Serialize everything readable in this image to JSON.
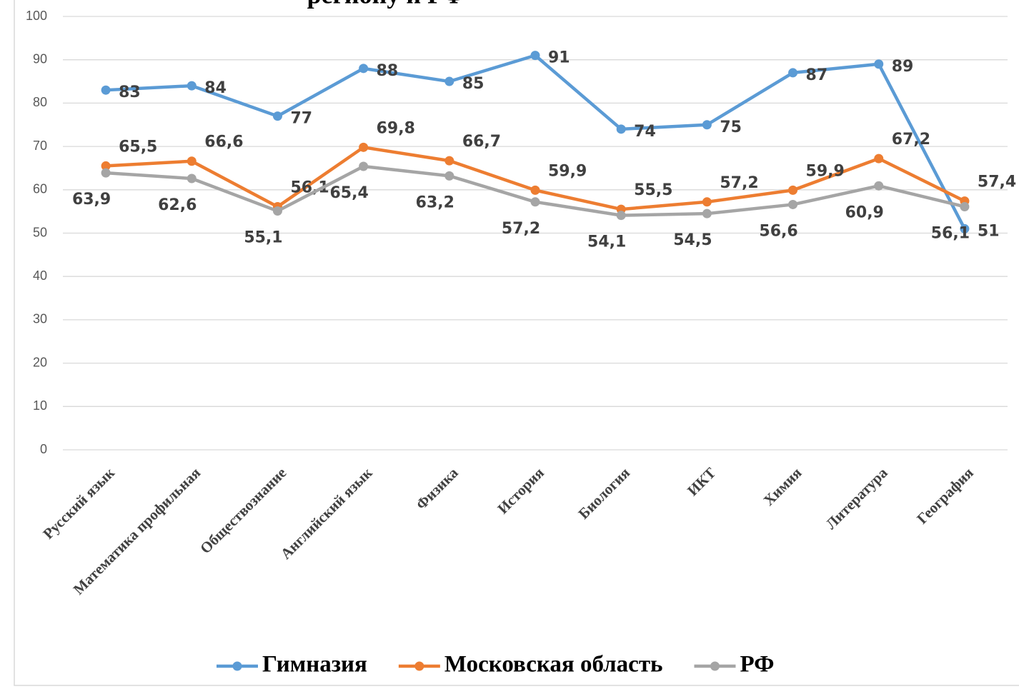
{
  "chart_data": {
    "type": "line",
    "title": "региону и РФ",
    "categories": [
      "Русский язык",
      "Математика профильная",
      "Обществознание",
      "Английский язык",
      "Физика",
      "История",
      "Биология",
      "ИКТ",
      "Химия",
      "Литература",
      "География"
    ],
    "series": [
      {
        "name": "Гимназия",
        "color": "#5b9bd5",
        "values": [
          83,
          84,
          77,
          88,
          85,
          91,
          74,
          75,
          87,
          89,
          51
        ]
      },
      {
        "name": "Московская область",
        "color": "#ed7d31",
        "values": [
          65.5,
          66.6,
          56.1,
          69.8,
          66.7,
          59.9,
          55.5,
          57.2,
          59.9,
          67.2,
          57.4
        ],
        "value_labels": [
          "65,5",
          "66,6",
          "56,1",
          "69,8",
          "66,7",
          "59,9",
          "55,5",
          "57,2",
          "59,9",
          "67,2",
          "57,4"
        ]
      },
      {
        "name": "РФ",
        "color": "#a5a5a5",
        "values": [
          63.9,
          62.6,
          55.1,
          65.4,
          63.2,
          57.2,
          54.1,
          54.5,
          56.6,
          60.9,
          56.1
        ],
        "value_labels": [
          "63,9",
          "62,6",
          "55,1",
          "65,4",
          "63,2",
          "57,2",
          "54,1",
          "54,5",
          "56,6",
          "60,9",
          "56,1"
        ]
      }
    ],
    "ylim": [
      0,
      100
    ],
    "yticks": [
      0,
      10,
      20,
      30,
      40,
      50,
      60,
      70,
      80,
      90,
      100
    ],
    "grid": true,
    "legend": "bottom"
  }
}
